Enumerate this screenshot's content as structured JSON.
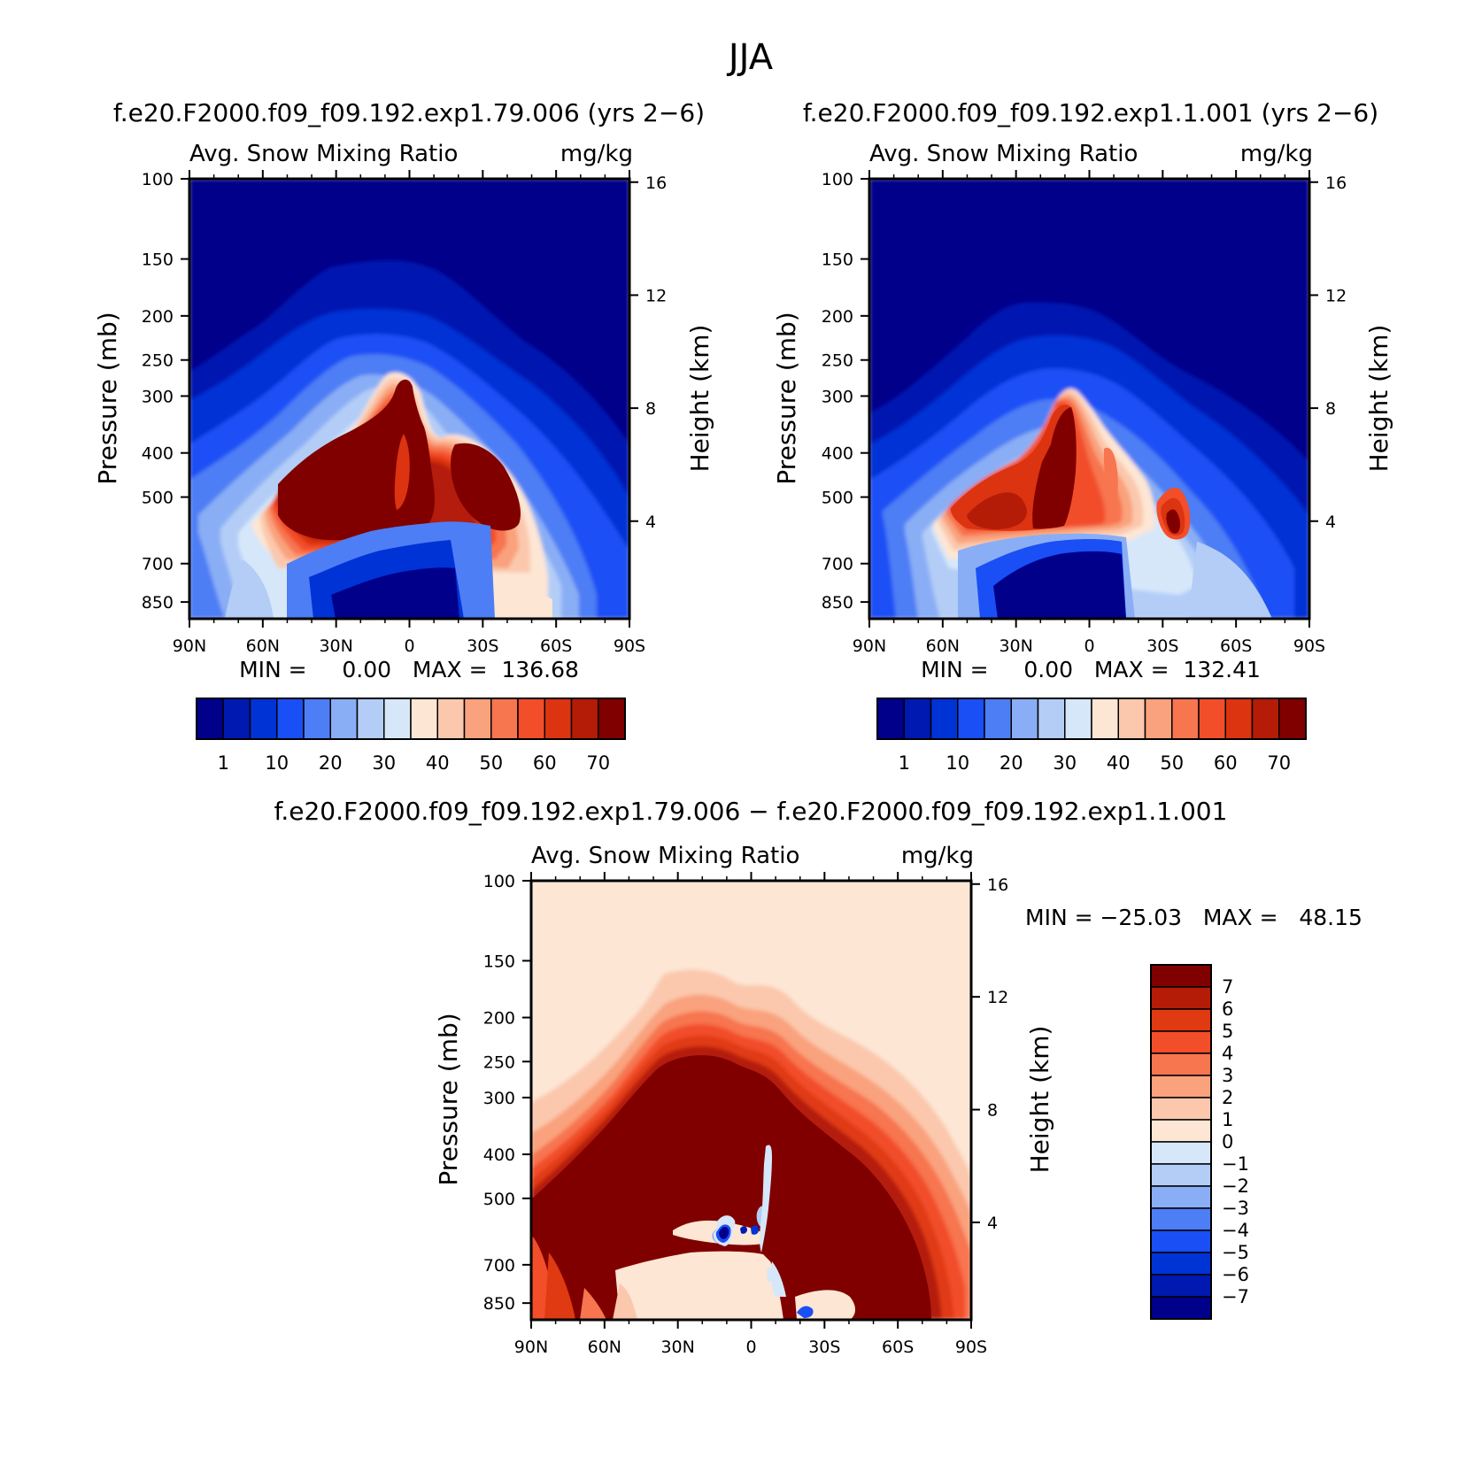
{
  "figure": {
    "title": "JJA"
  },
  "colors": {
    "abs_scale": [
      "#00008b",
      "#0019b0",
      "#0033d6",
      "#1a4ff5",
      "#4d7ef5",
      "#8aaef5",
      "#b3cdf7",
      "#d6e7f9",
      "#fde6d4",
      "#fbc8ad",
      "#f9a27d",
      "#f7754f",
      "#f24e2a",
      "#dc3310",
      "#b41c07",
      "#800000"
    ],
    "diff_scale": [
      "#800000",
      "#b41c07",
      "#e03a12",
      "#f24e2a",
      "#f7754f",
      "#f9a27d",
      "#fbc8ad",
      "#fde6d4",
      "#d6e7f9",
      "#b3cdf7",
      "#8aaef5",
      "#4d7ef5",
      "#1a4ff5",
      "#0033d6",
      "#0019b0",
      "#00008b"
    ]
  },
  "panels": [
    {
      "run_title": "f.e20.F2000.f09_f09.192.exp1.79.006 (yrs 2−6)",
      "variable": "Avg. Snow Mixing Ratio",
      "units": "mg/kg",
      "ylabel": "Pressure (mb)",
      "ylabel_right": "Height (km)",
      "x_ticks": [
        "90N",
        "60N",
        "30N",
        "0",
        "30S",
        "60S",
        "90S"
      ],
      "y_ticks": [
        "100",
        "150",
        "200",
        "250",
        "300",
        "400",
        "500",
        "700",
        "850"
      ],
      "y2_ticks": [
        "16",
        "12",
        "8",
        "4"
      ],
      "stats": "MIN =     0.00   MAX =  136.68",
      "colorbar_labels": [
        "1",
        "10",
        "20",
        "30",
        "40",
        "50",
        "60",
        "70"
      ]
    },
    {
      "run_title": "f.e20.F2000.f09_f09.192.exp1.1.001 (yrs 2−6)",
      "variable": "Avg. Snow Mixing Ratio",
      "units": "mg/kg",
      "ylabel": "Pressure (mb)",
      "ylabel_right": "Height (km)",
      "x_ticks": [
        "90N",
        "60N",
        "30N",
        "0",
        "30S",
        "60S",
        "90S"
      ],
      "y_ticks": [
        "100",
        "150",
        "200",
        "250",
        "300",
        "400",
        "500",
        "700",
        "850"
      ],
      "y2_ticks": [
        "16",
        "12",
        "8",
        "4"
      ],
      "stats": "MIN =     0.00   MAX =  132.41",
      "colorbar_labels": [
        "1",
        "10",
        "20",
        "30",
        "40",
        "50",
        "60",
        "70"
      ]
    },
    {
      "run_title": "f.e20.F2000.f09_f09.192.exp1.79.006 − f.e20.F2000.f09_f09.192.exp1.1.001",
      "variable": "Avg. Snow Mixing Ratio",
      "units": "mg/kg",
      "ylabel": "Pressure (mb)",
      "ylabel_right": "Height (km)",
      "x_ticks": [
        "90N",
        "60N",
        "30N",
        "0",
        "30S",
        "60S",
        "90S"
      ],
      "y_ticks": [
        "100",
        "150",
        "200",
        "250",
        "300",
        "400",
        "500",
        "700",
        "850"
      ],
      "y2_ticks": [
        "16",
        "12",
        "8",
        "4"
      ],
      "stats": "MIN = −25.03   MAX =   48.15",
      "colorbar_labels": [
        "7",
        "6",
        "5",
        "4",
        "3",
        "2",
        "1",
        "0",
        "−1",
        "−2",
        "−3",
        "−4",
        "−5",
        "−6",
        "−7"
      ]
    }
  ],
  "chart_data": [
    {
      "type": "heatmap",
      "title": "f.e20.F2000.f09_f09.192.exp1.79.006 (yrs 2−6)",
      "subtitle": "Avg. Snow Mixing Ratio",
      "units": "mg/kg",
      "xlabel": "",
      "ylabel": "Pressure (mb)",
      "y2label": "Height (km)",
      "x_range": [
        "90N",
        "90S"
      ],
      "y_range_mb": [
        100,
        850
      ],
      "y_scale": "log",
      "min": 0.0,
      "max": 136.68,
      "contour_levels": [
        1,
        5,
        10,
        15,
        20,
        25,
        30,
        35,
        40,
        45,
        50,
        55,
        60,
        65,
        70
      ],
      "maxima": [
        {
          "lat": "30N–0",
          "pressure_mb": "400–600",
          "level": ">70"
        },
        {
          "lat": "~35S",
          "pressure_mb": "500–700",
          "level": ">70"
        }
      ]
    },
    {
      "type": "heatmap",
      "title": "f.e20.F2000.f09_f09.192.exp1.1.001 (yrs 2−6)",
      "subtitle": "Avg. Snow Mixing Ratio",
      "units": "mg/kg",
      "xlabel": "",
      "ylabel": "Pressure (mb)",
      "y2label": "Height (km)",
      "x_range": [
        "90N",
        "90S"
      ],
      "y_range_mb": [
        100,
        850
      ],
      "y_scale": "log",
      "min": 0.0,
      "max": 132.41,
      "contour_levels": [
        1,
        5,
        10,
        15,
        20,
        25,
        30,
        35,
        40,
        45,
        50,
        55,
        60,
        65,
        70
      ],
      "maxima": [
        {
          "lat": "~10N",
          "pressure_mb": "400–650",
          "level": ">70"
        },
        {
          "lat": "~35S",
          "pressure_mb": "550–700",
          "level": ">70"
        }
      ]
    },
    {
      "type": "heatmap",
      "title": "f.e20.F2000.f09_f09.192.exp1.79.006 − f.e20.F2000.f09_f09.192.exp1.1.001",
      "subtitle": "Avg. Snow Mixing Ratio",
      "units": "mg/kg",
      "xlabel": "",
      "ylabel": "Pressure (mb)",
      "y2label": "Height (km)",
      "x_range": [
        "90N",
        "90S"
      ],
      "y_range_mb": [
        100,
        850
      ],
      "y_scale": "log",
      "min": -25.03,
      "max": 48.15,
      "contour_levels": [
        -7,
        -6,
        -5,
        -4,
        -3,
        -2,
        -1,
        0,
        1,
        2,
        3,
        4,
        5,
        6,
        7
      ],
      "maxima": [
        {
          "lat": "90N–75S",
          "pressure_mb": "250–850",
          "level": ">7"
        }
      ],
      "minima": [
        {
          "lat": "~10N",
          "pressure_mb": "~600",
          "level": "<−7"
        }
      ]
    }
  ]
}
